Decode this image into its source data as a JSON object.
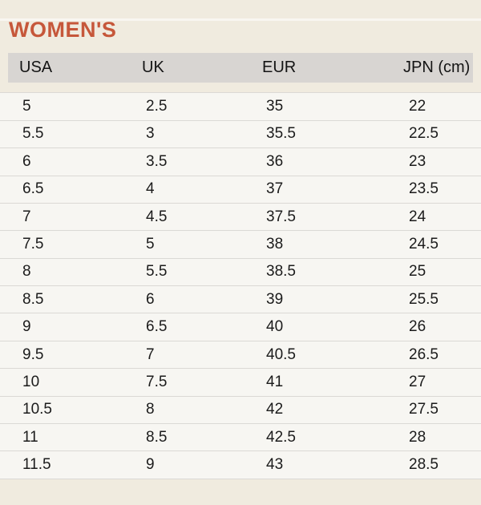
{
  "page": {
    "title": "WOMEN'S"
  },
  "table": {
    "columns": [
      "USA",
      "UK",
      "EUR",
      "JPN (cm)"
    ],
    "rows": [
      [
        "5",
        "2.5",
        "35",
        "22"
      ],
      [
        "5.5",
        "3",
        "35.5",
        "22.5"
      ],
      [
        "6",
        "3.5",
        "36",
        "23"
      ],
      [
        "6.5",
        "4",
        "37",
        "23.5"
      ],
      [
        "7",
        "4.5",
        "37.5",
        "24"
      ],
      [
        "7.5",
        "5",
        "38",
        "24.5"
      ],
      [
        "8",
        "5.5",
        "38.5",
        "25"
      ],
      [
        "8.5",
        "6",
        "39",
        "25.5"
      ],
      [
        "9",
        "6.5",
        "40",
        "26"
      ],
      [
        "9.5",
        "7",
        "40.5",
        "26.5"
      ],
      [
        "10",
        "7.5",
        "41",
        "27"
      ],
      [
        "10.5",
        "8",
        "42",
        "27.5"
      ],
      [
        "11",
        "8.5",
        "42.5",
        "28"
      ],
      [
        "11.5",
        "9",
        "43",
        "28.5"
      ]
    ]
  },
  "colors": {
    "accent_title": "#c6573a",
    "page_background": "#f0ebdf",
    "header_background": "#d8d5d2",
    "row_background": "#f7f6f2",
    "separator": "#dbd9d5",
    "text": "#1b1b1b"
  }
}
